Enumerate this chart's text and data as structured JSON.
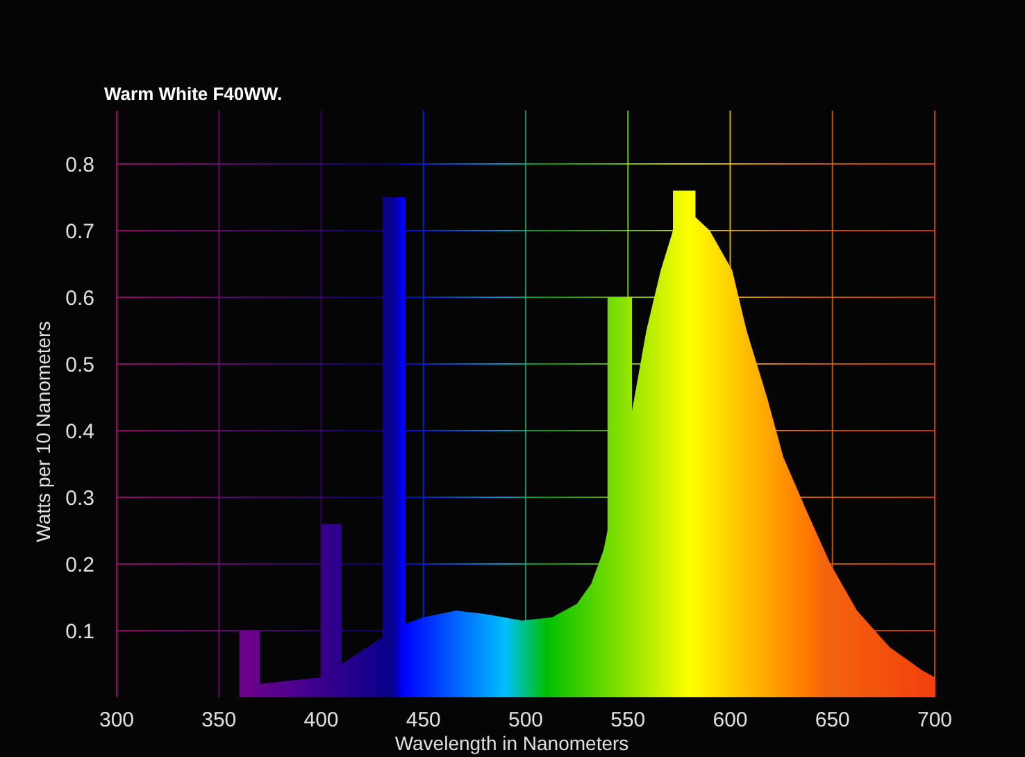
{
  "chart_data": {
    "type": "area",
    "title": "Warm White F40WW.",
    "xlabel": "Wavelength in Nanometers",
    "ylabel": "Watts per 10 Nanometers",
    "xlim": [
      300,
      700
    ],
    "xticks": [
      300,
      350,
      400,
      450,
      500,
      550,
      600,
      650,
      700
    ],
    "ylim": [
      0,
      0.88
    ],
    "yticks": [
      0.1,
      0.2,
      0.3,
      0.4,
      0.5,
      0.6,
      0.7,
      0.8
    ],
    "grid": true,
    "x": [
      360,
      370,
      370,
      385,
      400,
      400,
      410,
      410,
      420,
      430,
      430,
      441,
      441,
      450,
      466,
      480,
      498,
      513,
      525,
      532,
      538,
      540,
      540,
      552,
      552,
      559,
      566,
      572,
      572,
      583,
      583,
      590,
      601,
      608,
      618,
      626,
      638,
      649,
      662,
      678,
      694,
      700
    ],
    "values": [
      0.1,
      0.1,
      0.02,
      0.025,
      0.03,
      0.26,
      0.26,
      0.05,
      0.07,
      0.09,
      0.75,
      0.75,
      0.11,
      0.12,
      0.13,
      0.125,
      0.115,
      0.12,
      0.14,
      0.17,
      0.22,
      0.25,
      0.6,
      0.6,
      0.43,
      0.55,
      0.64,
      0.7,
      0.76,
      0.76,
      0.72,
      0.7,
      0.64,
      0.55,
      0.45,
      0.36,
      0.275,
      0.2,
      0.13,
      0.075,
      0.04,
      0.03
    ]
  }
}
